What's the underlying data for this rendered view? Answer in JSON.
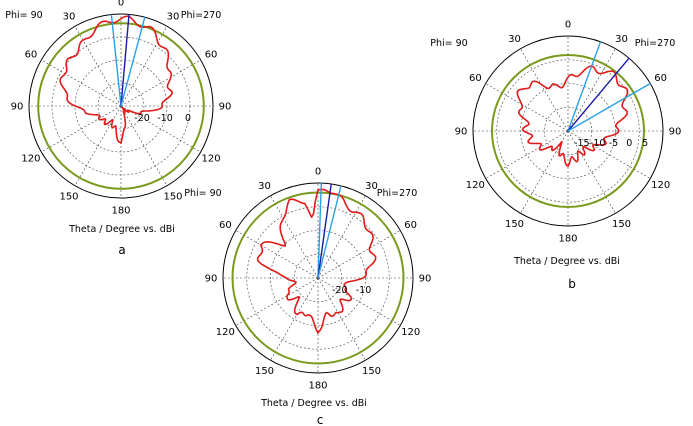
{
  "chart_data": [
    {
      "type": "polar",
      "panel_label": "a",
      "phi_left": "Phi= 90",
      "phi_right": "Phi=270",
      "caption": "Theta / Degree vs. dBi",
      "angle_labels": [
        "0",
        "30",
        "60",
        "90",
        "120",
        "150",
        "180",
        "150",
        "120",
        "90",
        "60",
        "30"
      ],
      "radial_tick_labels": [
        "-20",
        "-10",
        "0"
      ],
      "radial_range_dbi": [
        -30,
        10
      ],
      "reference_circle_dbi": 6,
      "main_beam_direction_deg": 5,
      "beam_lines_deg": [
        -6,
        5,
        15
      ],
      "pattern": {
        "theta_deg": [
          -180,
          -165,
          -150,
          -135,
          -120,
          -105,
          -90,
          -75,
          -60,
          -45,
          -30,
          -20,
          -10,
          0,
          5,
          10,
          20,
          30,
          45,
          60,
          75,
          90,
          105,
          120,
          135,
          150,
          165,
          180
        ],
        "gain_dbi": [
          -14,
          -20,
          -22,
          -20,
          -20,
          -17,
          -10,
          -4,
          -1,
          0,
          2,
          5,
          7,
          8,
          8,
          7,
          6,
          3,
          -1,
          -6,
          -8,
          -12,
          -20,
          -25,
          -28,
          -28,
          -24,
          -14
        ]
      }
    },
    {
      "type": "polar",
      "panel_label": "b",
      "phi_left": "Phi= 90",
      "phi_right": "Phi=270",
      "caption": "Theta / Degree vs. dBi",
      "angle_labels": [
        "0",
        "30",
        "60",
        "90",
        "120",
        "150",
        "180",
        "150",
        "120",
        "90",
        "60",
        "30"
      ],
      "radial_tick_labels": [
        "-15",
        "-10",
        "-5",
        "0",
        "5"
      ],
      "radial_range_dbi": [
        -20,
        10
      ],
      "reference_circle_dbi": 4,
      "main_beam_direction_deg": 40,
      "beam_lines_deg": [
        20,
        40,
        60
      ],
      "pattern": {
        "theta_deg": [
          -180,
          -165,
          -150,
          -135,
          -120,
          -105,
          -90,
          -75,
          -60,
          -45,
          -30,
          -15,
          0,
          15,
          30,
          45,
          60,
          75,
          90,
          105,
          120,
          135,
          150,
          165,
          180
        ],
        "gain_dbi": [
          -10,
          -12,
          -15,
          -12,
          -10,
          -8,
          -7,
          -6,
          -2,
          0,
          -3,
          -6,
          -4,
          0,
          2,
          3,
          1,
          -2,
          -5,
          -8,
          -10,
          -12,
          -12,
          -11,
          -10
        ]
      }
    },
    {
      "type": "polar",
      "panel_label": "c",
      "phi_left": "Phi= 90",
      "phi_right": "Phi=270",
      "caption": "Theta / Degree vs. dBi",
      "angle_labels": [
        "0",
        "30",
        "60",
        "90",
        "120",
        "150",
        "180",
        "150",
        "120",
        "90",
        "60",
        "30"
      ],
      "radial_tick_labels": [
        "-20",
        "-10"
      ],
      "radial_range_dbi": [
        -30,
        10
      ],
      "reference_circle_dbi": 6,
      "main_beam_direction_deg": 8,
      "beam_lines_deg": [
        2,
        8,
        14
      ],
      "pattern": {
        "theta_deg": [
          -180,
          -165,
          -150,
          -135,
          -120,
          -105,
          -90,
          -75,
          -60,
          -45,
          -30,
          -20,
          -10,
          -5,
          0,
          5,
          10,
          20,
          30,
          45,
          60,
          75,
          90,
          105,
          120,
          135,
          150,
          165,
          180
        ],
        "gain_dbi": [
          -8,
          -15,
          -12,
          -18,
          -14,
          -20,
          -18,
          -5,
          -2,
          -10,
          0,
          4,
          3,
          -6,
          6,
          8,
          7,
          3,
          2,
          0,
          -4,
          -6,
          -12,
          -20,
          -14,
          -16,
          -12,
          -15,
          -8
        ]
      }
    }
  ]
}
